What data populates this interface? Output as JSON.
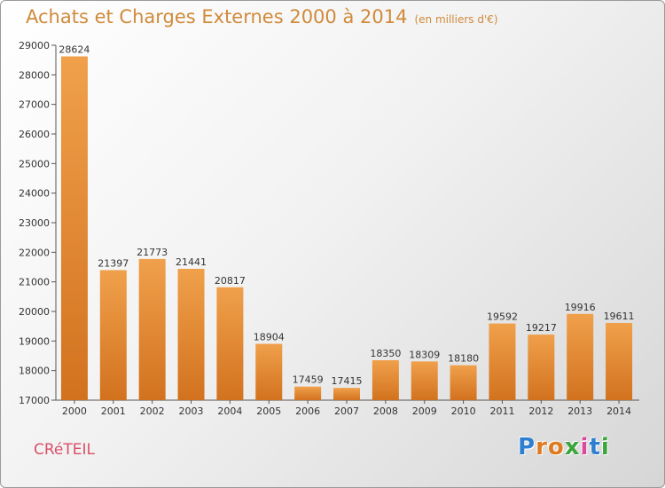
{
  "header": {
    "title": "Achats et Charges Externes 2000 à 2014",
    "subtitle": "(en milliers d'€)"
  },
  "footer": {
    "city": "CRéTEIL",
    "logo_letters": [
      {
        "ch": "P",
        "color": "#2f7fd0"
      },
      {
        "ch": "r",
        "color": "#e07a1f"
      },
      {
        "ch": "o",
        "color": "#e07a1f"
      },
      {
        "ch": "x",
        "color": "#3ba53b"
      },
      {
        "ch": "i",
        "color": "#d94a9b"
      },
      {
        "ch": "t",
        "color": "#2f7fd0"
      },
      {
        "ch": "i",
        "color": "#3ba53b"
      }
    ]
  },
  "chart_data": {
    "type": "bar",
    "title": "Achats et Charges Externes 2000 à 2014",
    "subtitle": "(en milliers d'€)",
    "categories": [
      "2000",
      "2001",
      "2002",
      "2003",
      "2004",
      "2005",
      "2006",
      "2007",
      "2008",
      "2009",
      "2010",
      "2011",
      "2012",
      "2013",
      "2014"
    ],
    "values": [
      28624,
      21397,
      21773,
      21441,
      20817,
      18904,
      17459,
      17415,
      18350,
      18309,
      18180,
      19592,
      19217,
      19916,
      19611
    ],
    "ylim": [
      17000,
      29000
    ],
    "yticks": [
      17000,
      18000,
      19000,
      20000,
      21000,
      22000,
      23000,
      24000,
      25000,
      26000,
      27000,
      28000,
      29000
    ],
    "grid": false,
    "bar_color": "#f0a04b",
    "bar_color_dark": "#d2721f"
  }
}
